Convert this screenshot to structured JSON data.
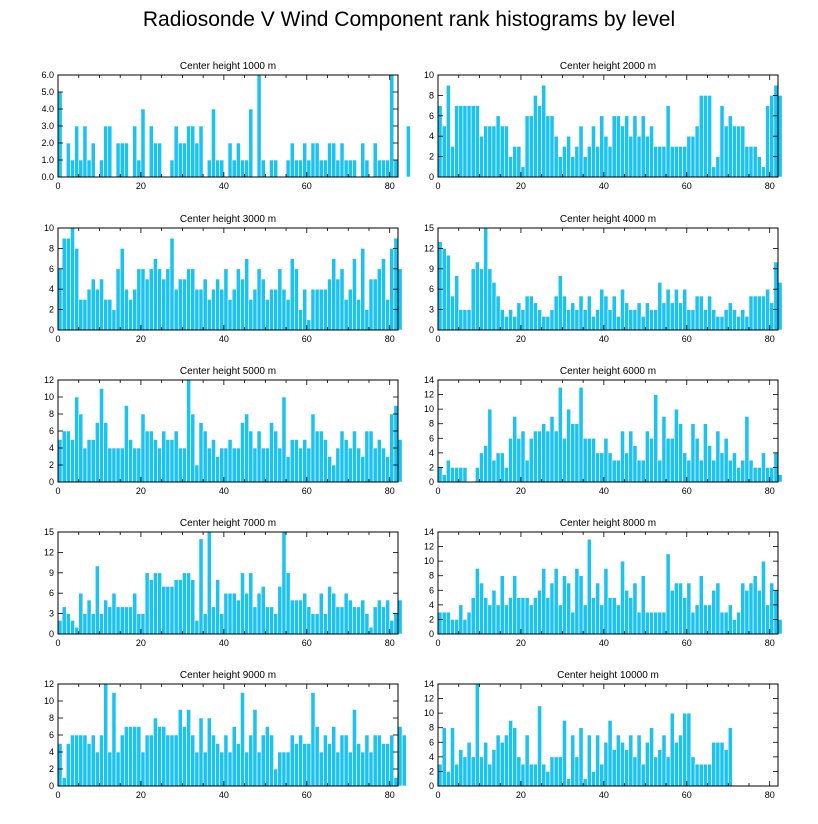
{
  "title": "Radiosonde V Wind Component rank histograms by level",
  "colors": {
    "bar": "#1cc3f0",
    "bar_edge": "#ffffff",
    "axis": "#000000"
  },
  "chart_data": [
    {
      "type": "bar",
      "title": "Center height 1000 m",
      "xlim": [
        0,
        82
      ],
      "ylim": [
        0,
        6
      ],
      "xticks": [
        0,
        20,
        40,
        60,
        80
      ],
      "yticks": [
        "0.0",
        "1.0",
        "2.0",
        "3.0",
        "4.0",
        "5.0",
        "6.0"
      ],
      "values": [
        5,
        0,
        2,
        1,
        3,
        1,
        3,
        1,
        2,
        0,
        1,
        3,
        3,
        0,
        2,
        2,
        2,
        0,
        3,
        1,
        4,
        0,
        3,
        2,
        2,
        0,
        0,
        1,
        3,
        2,
        2,
        3,
        3,
        2,
        3,
        0,
        1,
        4,
        1,
        1,
        0,
        2,
        1,
        2,
        1,
        1,
        4,
        0,
        6,
        1,
        0,
        1,
        1,
        0,
        0,
        1,
        2,
        1,
        1,
        2,
        1,
        2,
        2,
        1,
        1,
        2,
        2,
        1,
        2,
        1,
        1,
        1,
        0,
        2,
        1,
        0,
        2,
        1,
        1,
        1,
        6,
        1,
        0,
        0,
        3
      ]
    },
    {
      "type": "bar",
      "title": "Center height 2000 m",
      "xlim": [
        0,
        82
      ],
      "ylim": [
        0,
        10
      ],
      "xticks": [
        0,
        20,
        40,
        60,
        80
      ],
      "yticks": [
        "0",
        "2",
        "4",
        "6",
        "8",
        "10"
      ],
      "values": [
        7,
        5,
        9,
        3,
        7,
        7,
        7,
        7,
        7,
        7,
        4,
        5,
        5,
        5,
        6,
        5,
        5,
        2,
        3,
        3,
        1,
        6,
        6,
        8,
        7,
        9,
        6,
        6,
        4,
        2,
        3,
        4,
        2,
        3,
        5,
        2,
        3,
        5,
        3,
        6,
        4,
        3,
        6,
        6,
        5,
        6,
        4,
        6,
        4,
        6,
        4,
        5,
        3,
        3,
        3,
        7,
        3,
        3,
        3,
        3,
        4,
        4,
        5,
        8,
        8,
        8,
        1,
        2,
        7,
        5,
        6,
        5,
        5,
        5,
        3,
        3,
        3,
        2,
        1,
        7,
        8,
        9,
        8
      ]
    },
    {
      "type": "bar",
      "title": "Center height 3000 m",
      "xlim": [
        0,
        82
      ],
      "ylim": [
        0,
        10
      ],
      "xticks": [
        0,
        20,
        40,
        60,
        80
      ],
      "yticks": [
        "0",
        "2",
        "4",
        "6",
        "8",
        "10"
      ],
      "values": [
        6,
        9,
        9,
        10,
        8,
        3,
        3,
        4,
        5,
        4,
        5,
        3,
        3,
        2,
        6,
        8,
        4,
        3,
        4,
        6,
        6,
        5,
        6,
        7,
        6,
        5,
        6,
        9,
        4,
        5,
        5,
        6,
        6,
        4,
        4,
        5,
        3,
        4,
        5,
        4,
        6,
        3,
        4,
        6,
        5,
        7,
        3,
        4,
        6,
        5,
        3,
        4,
        4,
        6,
        4,
        3,
        7,
        6,
        2,
        4,
        1,
        4,
        4,
        4,
        4,
        5,
        7,
        5,
        6,
        3,
        4,
        7,
        3,
        8,
        2,
        5,
        5,
        6,
        7,
        3,
        8,
        9,
        6
      ]
    },
    {
      "type": "bar",
      "title": "Center height 4000 m",
      "xlim": [
        0,
        82
      ],
      "ylim": [
        0,
        15
      ],
      "xticks": [
        0,
        20,
        40,
        60,
        80
      ],
      "yticks": [
        "0",
        "3",
        "6",
        "9",
        "12",
        "15"
      ],
      "values": [
        13,
        12,
        11,
        5,
        8,
        3,
        3,
        3,
        9,
        10,
        9,
        15,
        9,
        7,
        5,
        3,
        2,
        3,
        2,
        4,
        3,
        5,
        5,
        4,
        3,
        2,
        2,
        3,
        5,
        8,
        5,
        3,
        4,
        3,
        5,
        3,
        5,
        2,
        3,
        6,
        5,
        3,
        5,
        2,
        6,
        4,
        3,
        3,
        4,
        2,
        4,
        3,
        3,
        7,
        4,
        6,
        4,
        6,
        4,
        6,
        3,
        3,
        5,
        5,
        3,
        5,
        3,
        2,
        2,
        3,
        4,
        3,
        2,
        3,
        2,
        5,
        5,
        5,
        5,
        6,
        4,
        10,
        7
      ]
    },
    {
      "type": "bar",
      "title": "Center height 5000 m",
      "xlim": [
        0,
        82
      ],
      "ylim": [
        0,
        12
      ],
      "xticks": [
        0,
        20,
        40,
        60,
        80
      ],
      "yticks": [
        "0",
        "2",
        "4",
        "6",
        "8",
        "10",
        "12"
      ],
      "values": [
        5,
        6,
        6,
        5,
        10,
        8,
        4,
        5,
        5,
        7,
        11,
        7,
        4,
        4,
        4,
        4,
        9,
        5,
        4,
        4,
        8,
        6,
        6,
        5,
        4,
        6,
        5,
        5,
        6,
        4,
        4,
        12,
        8,
        2,
        7,
        6,
        4,
        5,
        3,
        4,
        4,
        5,
        4,
        4,
        7,
        8,
        6,
        4,
        6,
        4,
        4,
        7,
        6,
        4,
        10,
        3,
        5,
        5,
        4,
        5,
        4,
        8,
        6,
        6,
        5,
        3,
        2,
        4,
        6,
        5,
        4,
        6,
        4,
        3,
        6,
        6,
        4,
        5,
        4,
        3,
        8,
        9,
        5
      ]
    },
    {
      "type": "bar",
      "title": "Center height 6000 m",
      "xlim": [
        0,
        82
      ],
      "ylim": [
        0,
        14
      ],
      "xticks": [
        0,
        20,
        40,
        60,
        80
      ],
      "yticks": [
        "0",
        "2",
        "4",
        "6",
        "8",
        "10",
        "12",
        "14"
      ],
      "values": [
        2,
        1,
        3,
        2,
        2,
        2,
        2,
        0,
        0,
        2,
        4,
        5,
        10,
        3,
        4,
        4,
        2,
        6,
        9,
        6,
        7,
        3,
        6,
        7,
        7,
        8,
        7,
        9,
        7,
        13,
        6,
        10,
        8,
        8,
        13,
        6,
        6,
        6,
        4,
        4,
        6,
        4,
        3,
        3,
        7,
        4,
        7,
        5,
        3,
        3,
        7,
        6,
        12,
        3,
        9,
        6,
        6,
        10,
        8,
        4,
        3,
        8,
        6,
        3,
        8,
        5,
        3,
        7,
        4,
        6,
        3,
        4,
        2,
        3,
        9,
        3,
        2,
        2,
        4,
        2,
        2,
        4,
        1
      ]
    },
    {
      "type": "bar",
      "title": "Center height 7000 m",
      "xlim": [
        0,
        82
      ],
      "ylim": [
        0,
        15
      ],
      "xticks": [
        0,
        20,
        40,
        60,
        80
      ],
      "yticks": [
        "0",
        "3",
        "6",
        "9",
        "12",
        "15"
      ],
      "values": [
        2,
        4,
        3,
        2,
        1,
        6,
        3,
        5,
        3,
        10,
        3,
        5,
        4,
        6,
        4,
        4,
        4,
        4,
        6,
        3,
        3,
        9,
        8,
        9,
        9,
        7,
        7,
        7,
        8,
        8,
        9,
        9,
        8,
        2,
        14,
        3,
        15,
        4,
        8,
        3,
        6,
        6,
        6,
        5,
        9,
        6,
        9,
        4,
        6,
        7,
        4,
        4,
        3,
        7,
        15,
        9,
        5,
        5,
        5,
        6,
        4,
        3,
        3,
        6,
        3,
        7,
        6,
        4,
        4,
        6,
        5,
        4,
        4,
        5,
        3,
        1,
        4,
        5,
        4,
        5,
        2,
        3,
        5
      ]
    },
    {
      "type": "bar",
      "title": "Center height 8000 m",
      "xlim": [
        0,
        82
      ],
      "ylim": [
        0,
        14
      ],
      "xticks": [
        0,
        20,
        40,
        60,
        80
      ],
      "yticks": [
        "0",
        "2",
        "4",
        "6",
        "8",
        "10",
        "12",
        "14"
      ],
      "values": [
        3,
        3,
        3,
        2,
        2,
        4,
        2,
        3,
        5,
        9,
        7,
        5,
        4,
        6,
        4,
        8,
        4,
        5,
        8,
        5,
        5,
        5,
        4,
        5,
        6,
        9,
        5,
        7,
        9,
        4,
        8,
        7,
        3,
        9,
        8,
        4,
        13,
        5,
        7,
        4,
        9,
        5,
        5,
        4,
        10,
        6,
        5,
        7,
        3,
        8,
        3,
        3,
        3,
        3,
        3,
        11,
        6,
        7,
        7,
        5,
        7,
        3,
        4,
        8,
        4,
        4,
        6,
        7,
        3,
        3,
        4,
        2,
        3,
        7,
        6,
        7,
        8,
        6,
        10,
        4,
        7,
        6,
        2
      ]
    },
    {
      "type": "bar",
      "title": "Center height 9000 m",
      "xlim": [
        0,
        82
      ],
      "ylim": [
        0,
        12
      ],
      "xticks": [
        0,
        20,
        40,
        60,
        80
      ],
      "yticks": [
        "0",
        "2",
        "4",
        "6",
        "8",
        "10",
        "12"
      ],
      "values": [
        5,
        1,
        5,
        6,
        6,
        6,
        6,
        5,
        6,
        4,
        6,
        12,
        4,
        11,
        4,
        6,
        7,
        7,
        7,
        7,
        4,
        6,
        6,
        8,
        7,
        7,
        6,
        6,
        6,
        9,
        7,
        9,
        6,
        4,
        8,
        4,
        8,
        6,
        5,
        4,
        6,
        4,
        7,
        5,
        11,
        4,
        6,
        9,
        4,
        6,
        7,
        6,
        2,
        4,
        4,
        4,
        6,
        5,
        6,
        5,
        5,
        11,
        7,
        4,
        6,
        5,
        7,
        4,
        6,
        6,
        4,
        9,
        5,
        4,
        6,
        4,
        6,
        6,
        5,
        5,
        6,
        1,
        7,
        6
      ]
    },
    {
      "type": "bar",
      "title": "Center height 10000 m",
      "xlim": [
        0,
        82
      ],
      "ylim": [
        0,
        14
      ],
      "xticks": [
        0,
        20,
        40,
        60,
        80
      ],
      "yticks": [
        "0",
        "2",
        "4",
        "6",
        "8",
        "10",
        "12",
        "14"
      ],
      "values": [
        3,
        8,
        2,
        8,
        3,
        5,
        4,
        6,
        4,
        14,
        4,
        6,
        3,
        5,
        7,
        6,
        7,
        9,
        8,
        4,
        3,
        7,
        3,
        3,
        11,
        3,
        2,
        4,
        4,
        4,
        9,
        1,
        7,
        4,
        8,
        1,
        7,
        2,
        7,
        3,
        6,
        9,
        5,
        7,
        6,
        5,
        7,
        4,
        7,
        3,
        6,
        8,
        4,
        5,
        7,
        4,
        10,
        6,
        7,
        10,
        10,
        4,
        3,
        3,
        3,
        3,
        6,
        6,
        6,
        5,
        8
      ]
    }
  ]
}
